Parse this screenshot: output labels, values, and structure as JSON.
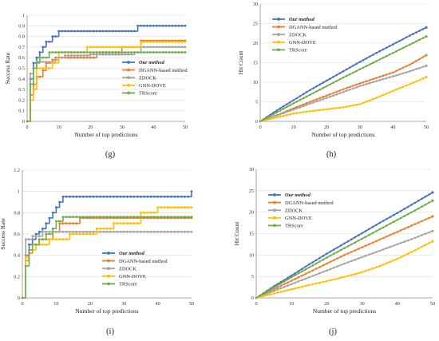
{
  "colors": {
    "our_method": "#4472C4",
    "dgann": "#ED7D31",
    "zdock": "#A5A5A5",
    "gnn_dove": "#FFC000",
    "trscore": "#70AD47"
  },
  "chart_data": [
    {
      "panel": "(g)",
      "type": "line",
      "xlabel": "Number of top predictions",
      "ylabel": "Success Rate",
      "xlim": [
        0,
        50
      ],
      "ylim": [
        0,
        1
      ],
      "xticks": [
        0,
        10,
        20,
        30,
        40,
        50
      ],
      "yticks": [
        0,
        0.1,
        0.2,
        0.3,
        0.4,
        0.5,
        0.6,
        0.7,
        0.8,
        0.9,
        1
      ],
      "ytick_labels": [
        "0",
        "0.1",
        "0.2",
        "0.3",
        "0.4",
        "0.5",
        "0.6",
        "0.7",
        "0.8",
        "0.9",
        "1"
      ],
      "legend_position": "bottom-right",
      "series": [
        {
          "name": "Our method",
          "italic": true,
          "step": true,
          "x": [
            0,
            1,
            2,
            3,
            4,
            5,
            6,
            7,
            8,
            9,
            10,
            35,
            50
          ],
          "values": [
            0,
            0.4,
            0.55,
            0.6,
            0.65,
            0.7,
            0.75,
            0.75,
            0.8,
            0.8,
            0.85,
            0.9,
            0.9
          ]
        },
        {
          "name": "DGANN-based method",
          "italic": false,
          "step": true,
          "x": [
            0,
            1,
            2,
            3,
            5,
            6,
            8,
            9,
            22,
            30,
            36,
            50
          ],
          "values": [
            0,
            0.25,
            0.35,
            0.42,
            0.48,
            0.55,
            0.58,
            0.6,
            0.65,
            0.7,
            0.76,
            0.76
          ]
        },
        {
          "name": "ZDOCK",
          "italic": false,
          "step": true,
          "x": [
            0,
            1,
            2,
            3,
            9,
            10,
            12,
            20,
            34,
            36,
            42,
            50
          ],
          "values": [
            0,
            0.45,
            0.5,
            0.56,
            0.58,
            0.6,
            0.62,
            0.63,
            0.65,
            0.7,
            0.7,
            0.7
          ]
        },
        {
          "name": "GNN-DOVE",
          "italic": false,
          "step": true,
          "x": [
            0,
            1,
            2,
            3,
            8,
            10,
            19,
            24,
            36,
            50
          ],
          "values": [
            0,
            0.2,
            0.3,
            0.5,
            0.55,
            0.65,
            0.7,
            0.7,
            0.75,
            0.75
          ]
        },
        {
          "name": "TRScore",
          "italic": false,
          "step": true,
          "x": [
            0,
            1,
            2,
            3,
            4,
            7,
            50
          ],
          "values": [
            0,
            0.35,
            0.5,
            0.55,
            0.6,
            0.65,
            0.65
          ]
        }
      ]
    },
    {
      "panel": "(h)",
      "type": "line",
      "xlabel": "Number of top predictions",
      "ylabel": "Hit Count",
      "xlim": [
        0,
        50
      ],
      "ylim": [
        0,
        30
      ],
      "xticks": [
        0,
        10,
        20,
        30,
        40,
        50
      ],
      "yticks": [
        0,
        5,
        10,
        15,
        20,
        25,
        30
      ],
      "ytick_labels": [
        "0",
        "5",
        "10",
        "15",
        "20",
        "25",
        "30"
      ],
      "legend_position": "top-left",
      "series": [
        {
          "name": "Our method",
          "italic": true,
          "step": false,
          "x": [
            0,
            5,
            10,
            15,
            20,
            25,
            30,
            35,
            40,
            45,
            50
          ],
          "values": [
            0,
            2.8,
            5.4,
            8,
            10.4,
            12.8,
            15.2,
            17.5,
            19.7,
            21.9,
            24
          ]
        },
        {
          "name": "DGANN-based method",
          "italic": false,
          "step": false,
          "x": [
            0,
            5,
            10,
            15,
            20,
            25,
            30,
            35,
            40,
            45,
            50
          ],
          "values": [
            0,
            1.6,
            3.3,
            5,
            6.6,
            8.2,
            9.7,
            11.1,
            12.5,
            14.5,
            16.9
          ]
        },
        {
          "name": "ZDOCK",
          "italic": false,
          "step": false,
          "x": [
            0,
            5,
            10,
            15,
            20,
            25,
            30,
            35,
            40,
            45,
            50
          ],
          "values": [
            0,
            1.5,
            3,
            4.5,
            6,
            7.5,
            9,
            10.3,
            11.5,
            12.8,
            14.2
          ]
        },
        {
          "name": "GNN-DOVE",
          "italic": false,
          "step": false,
          "x": [
            0,
            5,
            10,
            15,
            20,
            25,
            30,
            35,
            40,
            45,
            50
          ],
          "values": [
            0,
            1,
            2,
            2.6,
            3.1,
            3.6,
            4.4,
            6,
            7.8,
            9.5,
            11.3
          ]
        },
        {
          "name": "TRScore",
          "italic": false,
          "step": false,
          "x": [
            0,
            5,
            10,
            15,
            20,
            25,
            30,
            35,
            40,
            45,
            50
          ],
          "values": [
            0,
            2.3,
            4.6,
            6.8,
            9,
            11.2,
            13.3,
            15.4,
            17.5,
            19.6,
            21.7
          ]
        }
      ]
    },
    {
      "panel": "(i)",
      "type": "line",
      "xlabel": "Number of top predictions",
      "ylabel": "Success Rate",
      "xlim": [
        0,
        50
      ],
      "ylim": [
        0,
        1.2
      ],
      "xticks": [
        0,
        10,
        20,
        30,
        40,
        50
      ],
      "yticks": [
        0,
        0.2,
        0.4,
        0.6,
        0.8,
        1,
        1.2
      ],
      "ytick_labels": [
        "0",
        "0.2",
        "0.4",
        "0.6",
        "0.8",
        "1",
        "1.2"
      ],
      "legend_position": "bottom-right",
      "series": [
        {
          "name": "Our method",
          "italic": true,
          "step": true,
          "x": [
            0,
            1,
            2,
            3,
            4,
            5,
            6,
            7,
            8,
            9,
            10,
            11,
            12,
            49,
            50
          ],
          "values": [
            0,
            0.4,
            0.5,
            0.55,
            0.6,
            0.62,
            0.65,
            0.7,
            0.75,
            0.8,
            0.85,
            0.9,
            0.95,
            0.95,
            1
          ]
        },
        {
          "name": "DGANN-based method",
          "italic": false,
          "step": true,
          "x": [
            0,
            1,
            2,
            3,
            5,
            9,
            11,
            17,
            50
          ],
          "values": [
            0,
            0.35,
            0.42,
            0.5,
            0.55,
            0.62,
            0.7,
            0.75,
            0.75
          ]
        },
        {
          "name": "ZDOCK",
          "italic": false,
          "step": true,
          "x": [
            0,
            1,
            3,
            6,
            50
          ],
          "values": [
            0,
            0.55,
            0.58,
            0.62,
            0.62
          ]
        },
        {
          "name": "GNN-DOVE",
          "italic": false,
          "step": true,
          "x": [
            0,
            1,
            2,
            4,
            8,
            14,
            22,
            27,
            35,
            40,
            50
          ],
          "values": [
            0,
            0.38,
            0.45,
            0.5,
            0.55,
            0.6,
            0.65,
            0.7,
            0.8,
            0.85,
            0.85
          ]
        },
        {
          "name": "TRScore",
          "italic": false,
          "step": true,
          "x": [
            0,
            1,
            2,
            3,
            5,
            7,
            9,
            10,
            12,
            50
          ],
          "values": [
            0,
            0.3,
            0.45,
            0.5,
            0.55,
            0.6,
            0.65,
            0.72,
            0.76,
            0.76
          ]
        }
      ]
    },
    {
      "panel": "(j)",
      "type": "line",
      "xlabel": "Number of top predictions",
      "ylabel": "Hit Count",
      "xlim": [
        0,
        50
      ],
      "ylim": [
        0,
        30
      ],
      "xticks": [
        0,
        10,
        20,
        30,
        40,
        50
      ],
      "yticks": [
        0,
        5,
        10,
        15,
        20,
        25,
        30
      ],
      "ytick_labels": [
        "0",
        "5",
        "10",
        "15",
        "20",
        "25",
        "30"
      ],
      "legend_position": "top-left",
      "series": [
        {
          "name": "Our method",
          "italic": true,
          "step": false,
          "x": [
            0,
            5,
            10,
            15,
            20,
            25,
            30,
            35,
            40,
            45,
            50
          ],
          "values": [
            0,
            2.7,
            5.2,
            7.8,
            10.3,
            12.7,
            15.1,
            17.5,
            19.8,
            22.2,
            24.6
          ]
        },
        {
          "name": "DGANN-based method",
          "italic": false,
          "step": false,
          "x": [
            0,
            5,
            10,
            15,
            20,
            25,
            30,
            35,
            40,
            45,
            50
          ],
          "values": [
            0,
            2,
            4,
            6,
            8,
            10,
            11.8,
            13.6,
            15.4,
            17.2,
            19
          ]
        },
        {
          "name": "ZDOCK",
          "italic": false,
          "step": false,
          "x": [
            0,
            5,
            10,
            15,
            20,
            25,
            30,
            35,
            40,
            45,
            50
          ],
          "values": [
            0,
            1.6,
            3.2,
            4.8,
            6.4,
            8,
            9.5,
            11,
            12.5,
            14,
            15.6
          ]
        },
        {
          "name": "GNN-DOVE",
          "italic": false,
          "step": false,
          "x": [
            0,
            5,
            10,
            15,
            20,
            25,
            30,
            35,
            40,
            45,
            50
          ],
          "values": [
            0,
            1,
            2,
            3,
            3.9,
            4.9,
            6,
            7.4,
            9.1,
            11.1,
            13.2
          ]
        },
        {
          "name": "TRScore",
          "italic": false,
          "step": false,
          "x": [
            0,
            5,
            10,
            15,
            20,
            25,
            30,
            35,
            40,
            45,
            50
          ],
          "values": [
            0,
            2.4,
            4.8,
            7.1,
            9.4,
            11.6,
            13.8,
            16,
            18.2,
            20.4,
            22.7
          ]
        }
      ]
    }
  ]
}
